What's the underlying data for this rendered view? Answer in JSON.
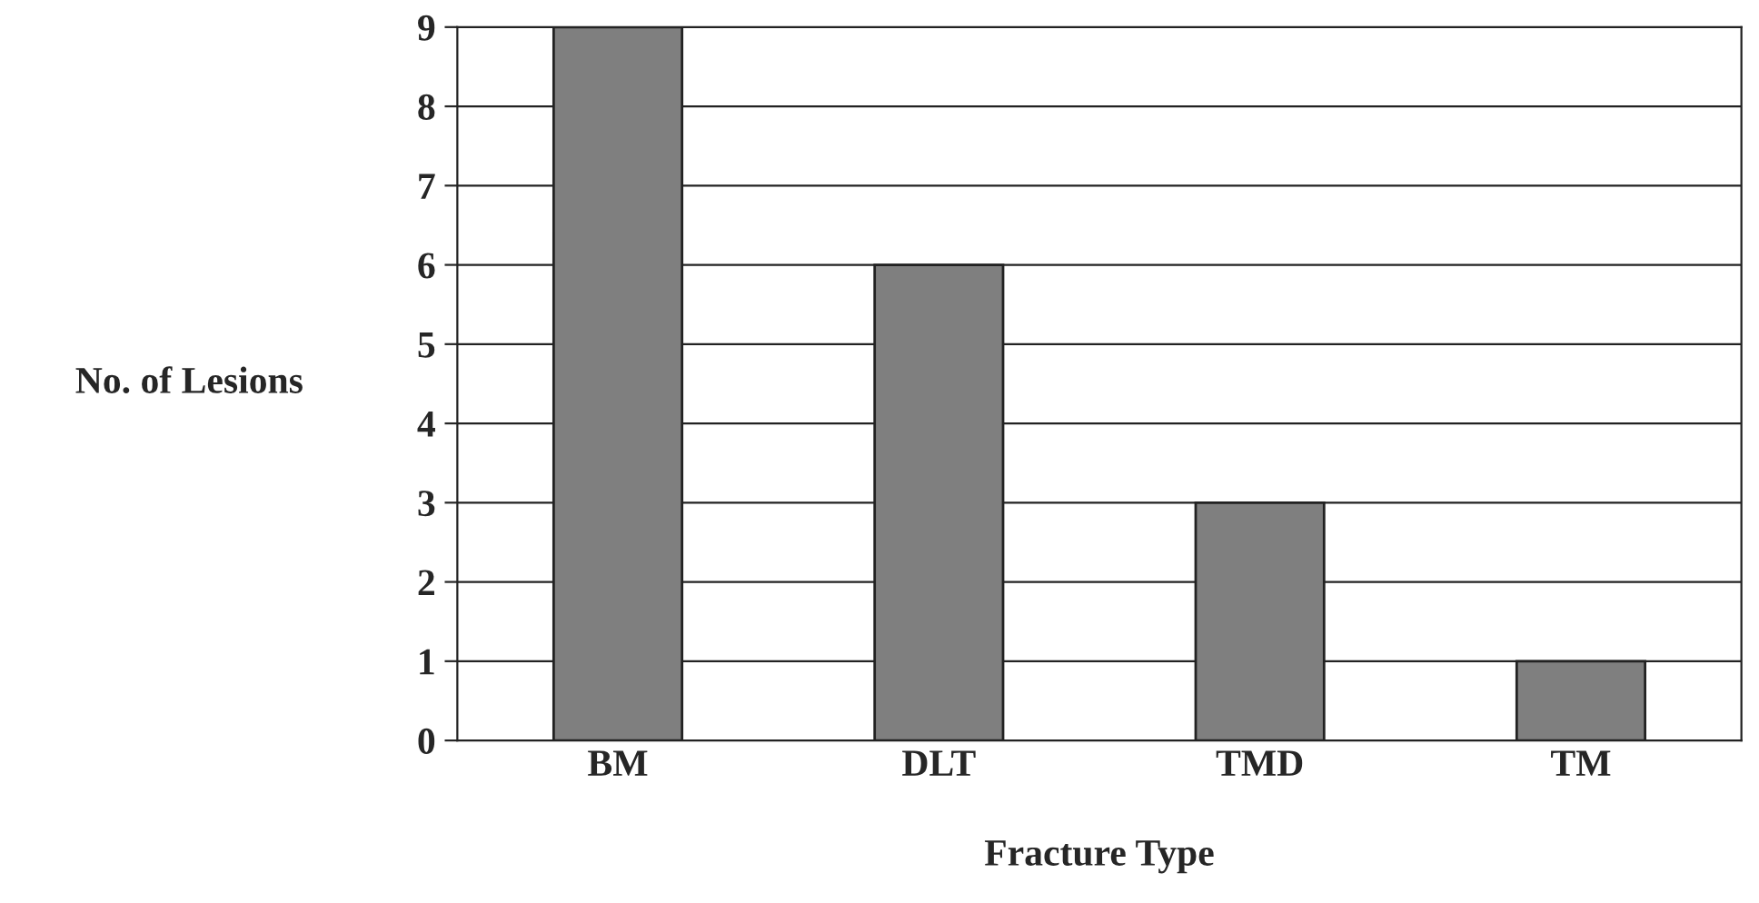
{
  "chart_data": {
    "type": "bar",
    "xlabel": "Fracture Type",
    "ylabel": "No. of Lesions",
    "categories": [
      "BM",
      "DLT",
      "TMD",
      "TM"
    ],
    "values": [
      9,
      6,
      3,
      1
    ],
    "color": "#7f7f7f",
    "ylim": [
      0,
      9
    ],
    "yticks": [
      0,
      1,
      2,
      3,
      4,
      5,
      6,
      7,
      8,
      9
    ],
    "grid": "y"
  }
}
